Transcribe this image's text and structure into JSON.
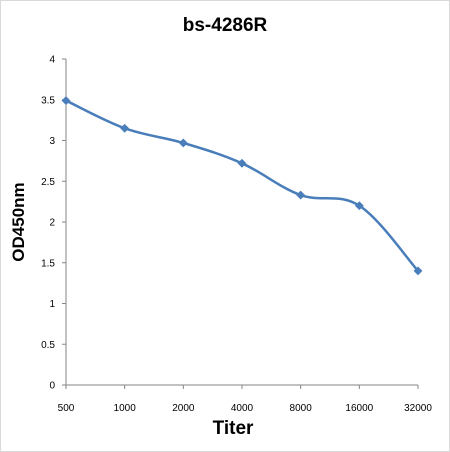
{
  "chart_data": {
    "type": "line",
    "title": "bs-4286R",
    "xlabel": "Titer",
    "ylabel": "OD450nm",
    "categories": [
      "500",
      "1000",
      "2000",
      "4000",
      "8000",
      "16000",
      "32000"
    ],
    "series": [
      {
        "values": [
          3.49,
          3.15,
          2.97,
          2.72,
          2.33,
          2.2,
          1.4
        ]
      }
    ],
    "ylim": [
      0,
      4
    ],
    "yticks": [
      "0",
      "0.5",
      "1",
      "1.5",
      "2",
      "2.5",
      "3",
      "3.5",
      "4"
    ],
    "grid": false,
    "line_color": "#4a7ebb",
    "marker": "diamond"
  }
}
